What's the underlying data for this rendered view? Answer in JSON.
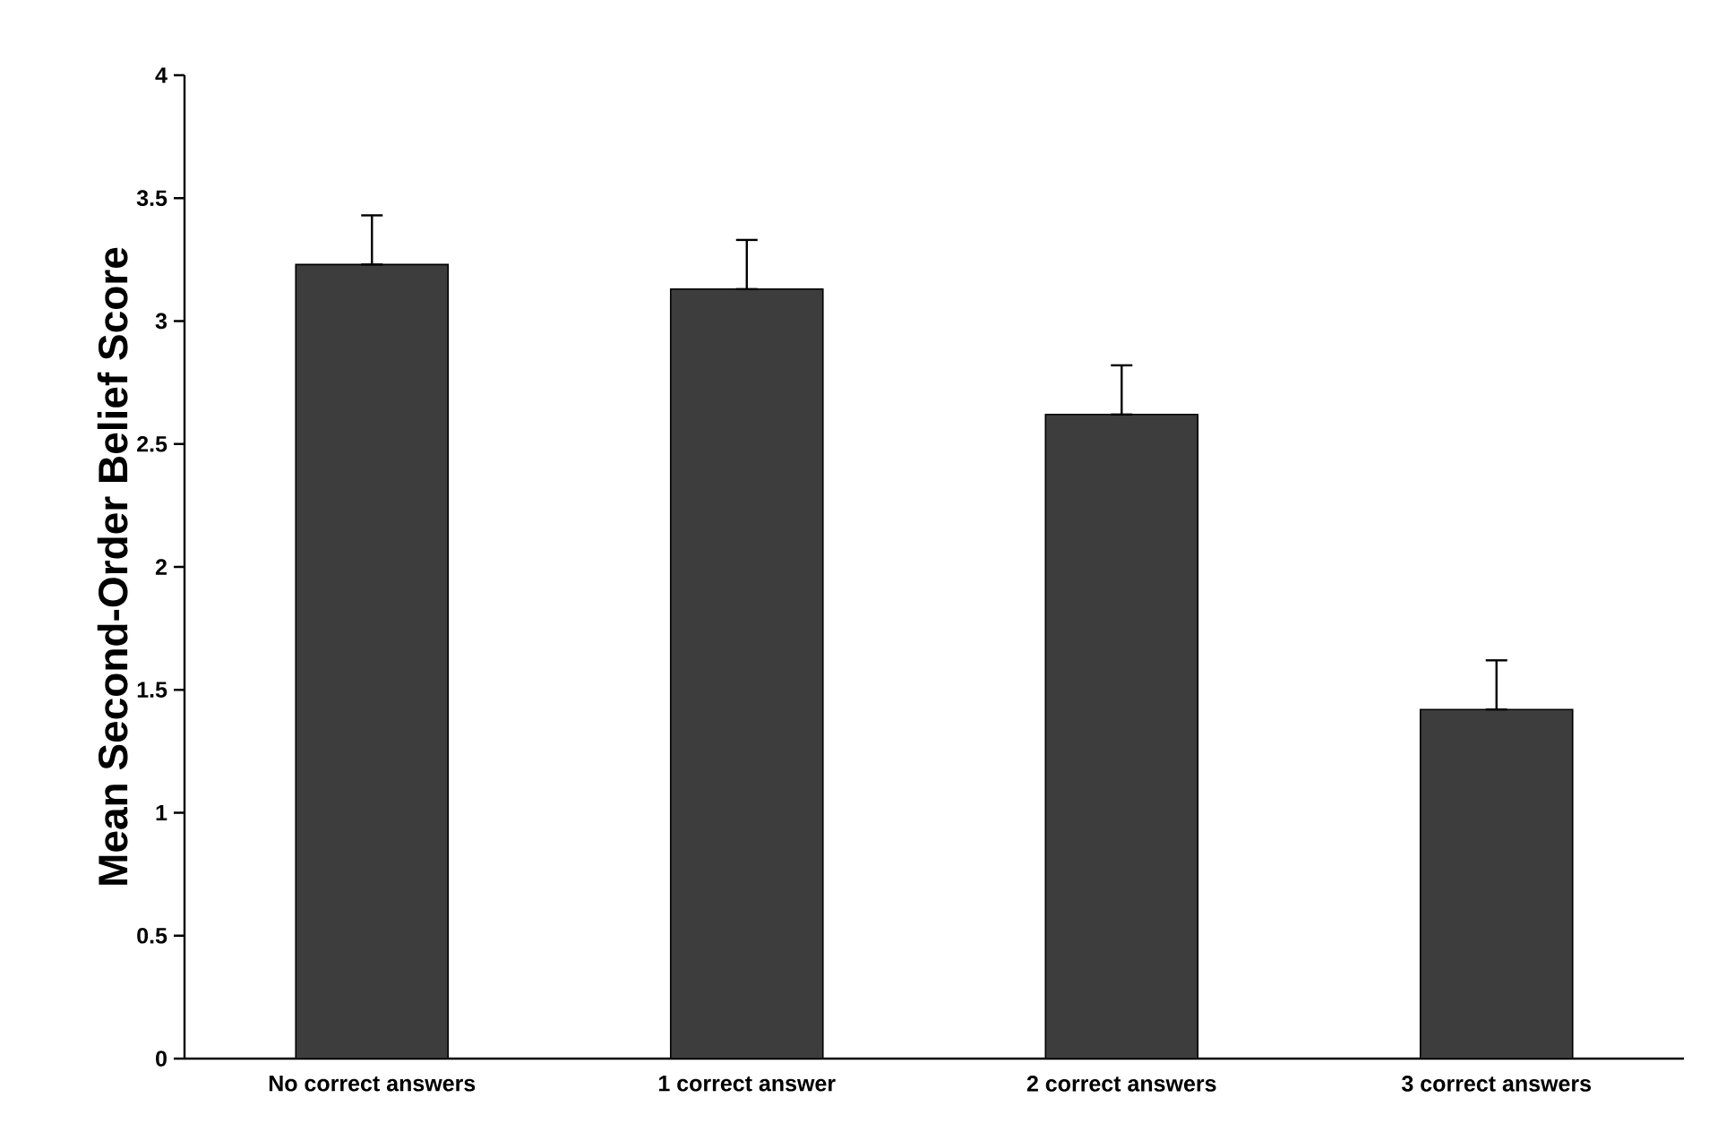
{
  "chart_data": {
    "type": "bar",
    "ylabel": "Mean Second-Order Belief Score",
    "categories": [
      "No correct answers",
      "1 correct answer",
      "2 correct answers",
      "3 correct answers"
    ],
    "values": [
      3.23,
      3.13,
      2.62,
      1.42
    ],
    "errors": [
      [
        3.23,
        3.43
      ],
      [
        3.13,
        3.33
      ],
      [
        2.62,
        2.82
      ],
      [
        1.42,
        1.62
      ]
    ],
    "color": "#3d3d3d",
    "ylim": [
      0,
      4
    ],
    "yticks": [
      0,
      0.5,
      1,
      1.5,
      2,
      2.5,
      3,
      3.5,
      4
    ],
    "grid": false
  }
}
